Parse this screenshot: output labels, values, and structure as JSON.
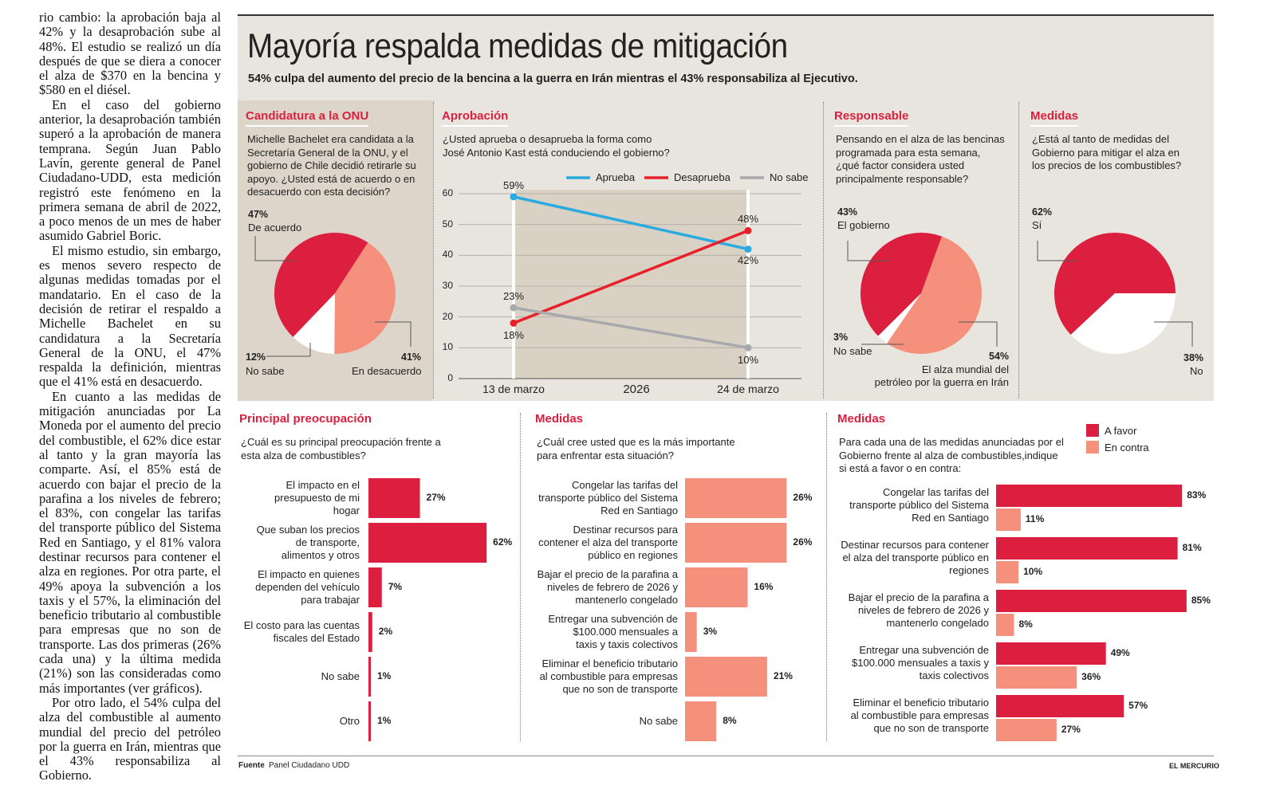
{
  "article": {
    "paragraphs": [
      "rio cambio: la aprobación baja al 42% y la desaprobación sube al 48%. El estudio se realizó un día después de que se diera a conocer el alza de $370 en la bencina y $580 en el diésel.",
      "En el caso del gobierno anterior, la desaprobación también superó a la aprobación de manera temprana. Según Juan Pablo Lavín, gerente general de Panel Ciudadano-UDD, esta medición registró este fenómeno en la primera semana de abril de 2022, a poco menos de un mes de haber asumido Gabriel Boric.",
      "El mismo estudio, sin embargo, es menos severo respecto de algunas medidas tomadas por el mandatario. En el caso de la decisión de retirar el respaldo a Michelle Bachelet en su candidatura a la Secretaría General de la ONU, el 47% respalda la definición, mientras que el 41% está en desacuerdo.",
      "En cuanto a las medidas de mitigación anunciadas por La Moneda por el aumento del precio del combustible, el 62% dice estar al tanto y la gran mayoría las comparte. Así, el 85% está de acuerdo con bajar el precio de la parafina a los niveles de febrero; el 83%, con congelar las tarifas del transporte público del Sistema Red en Santiago, y el 81% valora destinar recursos para contener el alza en regiones. Por otra parte, el 49% apoya la subvención a los taxis y el 57%, la eliminación del beneficio tributario al combustible para empresas que no son de transporte. Las dos primeras (26% cada una) y la última medida (21%) son las consideradas como más importantes (ver gráficos).",
      "Por otro lado, el 54% culpa del alza del combustible al aumento mundial del precio del petróleo por la guerra en Irán, mientras que el 43% responsabiliza al Gobierno."
    ]
  },
  "header": {
    "title": "Mayoría respalda medidas de mitigación",
    "subtitle": "54% culpa del aumento del precio de la bencina a la guerra en Irán mientras el 43% responsabiliza al Ejecutivo."
  },
  "colors": {
    "favor": "#dc1f3f",
    "contra": "#f5907c",
    "none": "#ffffff",
    "aprueba": "#29abe2",
    "desaprueba": "#e8202a",
    "nosabe": "#a7a9ac",
    "panel": "#e8e5de",
    "panel_dark": "#ddd5c9"
  },
  "chart_data": [
    {
      "type": "pie",
      "title": "Candidatura a la ONU",
      "question": "Michelle Bachelet era candidata a la\nSecretaría General de la ONU, y el\ngobierno de Chile decidió retirarle su\napoyo. ¿Usted está de acuerdo o en\ndesacuerdo con esta decisión?",
      "slices": [
        {
          "label": "En desacuerdo",
          "value": 41,
          "pct": "41%",
          "color": "#f5907c"
        },
        {
          "label": "No sabe",
          "value": 12,
          "pct": "12%",
          "color": "#ffffff"
        },
        {
          "label": "De acuerdo",
          "value": 47,
          "pct": "47%",
          "color": "#dc1f3f"
        }
      ]
    },
    {
      "type": "line",
      "title": "Aprobación",
      "question": "¿Usted aprueba o desaprueba la forma como\nJosé Antonio Kast está conduciendo el gobierno?",
      "x": [
        "13 de marzo",
        "24 de marzo"
      ],
      "xlabel": "2026",
      "ylim": [
        0,
        60
      ],
      "yticks": [
        "0",
        "10",
        "20",
        "30",
        "40",
        "50",
        "60"
      ],
      "grid": true,
      "legend_position": "top",
      "series": [
        {
          "name": "Aprueba",
          "values": [
            59,
            42
          ],
          "labels": [
            "59%",
            "42%"
          ],
          "color": "#29abe2"
        },
        {
          "name": "Desaprueba",
          "values": [
            18,
            48
          ],
          "labels": [
            "18%",
            "48%"
          ],
          "color": "#e8202a"
        },
        {
          "name": "No sabe",
          "values": [
            23,
            10
          ],
          "labels": [
            "23%",
            "10%"
          ],
          "color": "#a7a9ac"
        }
      ]
    },
    {
      "type": "pie",
      "title": "Responsable",
      "question": "Pensando en el alza de las bencinas\nprogramada para esta semana,\n¿qué factor considera usted\nprincipalmente responsable?",
      "slices": [
        {
          "label": "El alza mundial del\npetróleo por la guerra en Irán",
          "value": 54,
          "pct": "54%",
          "color": "#f5907c"
        },
        {
          "label": "No sabe",
          "value": 3,
          "pct": "3%",
          "color": "#ffffff"
        },
        {
          "label": "El gobierno",
          "value": 43,
          "pct": "43%",
          "color": "#dc1f3f"
        }
      ]
    },
    {
      "type": "pie",
      "title": "Medidas",
      "question": "¿Está al tanto de medidas del\nGobierno para mitigar el alza en\nlos precios de los combustibles?",
      "slices": [
        {
          "label": "No",
          "value": 38,
          "pct": "38%",
          "color": "#ffffff"
        },
        {
          "label": "Sí",
          "value": 62,
          "pct": "62%",
          "color": "#dc1f3f"
        }
      ]
    },
    {
      "type": "bar",
      "orientation": "horizontal",
      "title": "Principal preocupación",
      "question": "¿Cuál es su principal preocupación frente a\nesta alza de combustibles?",
      "color": "#dc1f3f",
      "categories": [
        "El impacto en el\npresupuesto de mi\nhogar",
        "Que suban los precios\nde transporte,\nalimentos y otros",
        "El impacto en quienes\ndependen del vehículo\npara trabajar",
        "El costo para las cuentas\nfiscales del Estado",
        "No sabe",
        "Otro"
      ],
      "values": [
        27,
        62,
        7,
        2,
        1,
        1
      ],
      "labels": [
        "27%",
        "62%",
        "7%",
        "2%",
        "1%",
        "1%"
      ]
    },
    {
      "type": "bar",
      "orientation": "horizontal",
      "title": "Medidas",
      "question": "¿Cuál cree usted que es la más importante\npara enfrentar esta situación?",
      "color": "#f5907c",
      "categories": [
        "Congelar las tarifas del\ntransporte público del Sistema\nRed en Santiago",
        "Destinar recursos para\ncontener el alza del transporte\npúblico en regiones",
        "Bajar el precio de la parafina a\nniveles de febrero de 2026 y\nmantenerlo congelado",
        "Entregar una subvención de\n$100.000 mensuales a\ntaxis y taxis colectivos",
        "Eliminar el beneficio tributario\nal combustible para empresas\nque no son de transporte",
        "No sabe"
      ],
      "values": [
        26,
        26,
        16,
        3,
        21,
        8
      ],
      "labels": [
        "26%",
        "26%",
        "16%",
        "3%",
        "21%",
        "8%"
      ]
    },
    {
      "type": "bar",
      "orientation": "horizontal",
      "title": "Medidas",
      "question": "Para cada una de las medidas anunciadas por el\nGobierno frente al alza de combustibles,indique\nsi está a favor o en contra:",
      "legend_position": "top-right",
      "categories": [
        "Congelar las tarifas del\ntransporte público del Sistema\nRed en Santiago",
        "Destinar recursos para contener\nel alza del transporte público en\nregiones",
        "Bajar el precio de la parafina a\nniveles de febrero de 2026 y\nmantenerlo congelado",
        "Entregar una subvención de\n$100.000 mensuales a taxis y\ntaxis colectivos",
        "Eliminar el beneficio tributario\nal combustible para empresas\nque no son de transporte"
      ],
      "series": [
        {
          "name": "A favor",
          "values": [
            83,
            81,
            85,
            49,
            57
          ],
          "labels": [
            "83%",
            "81%",
            "85%",
            "49%",
            "57%"
          ],
          "color": "#dc1f3f"
        },
        {
          "name": "En contra",
          "values": [
            11,
            10,
            8,
            36,
            27
          ],
          "labels": [
            "11%",
            "10%",
            "8%",
            "36%",
            "27%"
          ],
          "color": "#f5907c"
        }
      ]
    }
  ],
  "footer": {
    "source_label": "Fuente",
    "source": "Panel Ciudadano UDD",
    "brand": "EL MERCURIO"
  }
}
